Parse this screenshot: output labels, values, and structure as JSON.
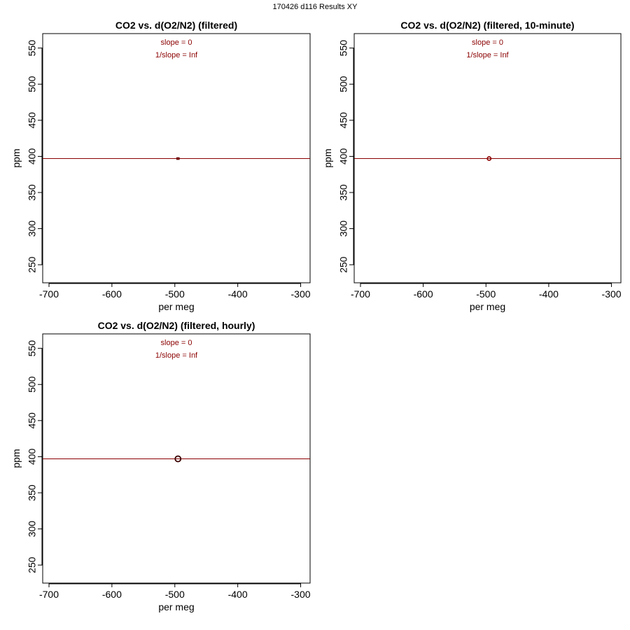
{
  "page": {
    "title": "170426   d116   Results XY"
  },
  "colors": {
    "fit_line": "#8b0000",
    "annotation": "#8b0000",
    "points": "#8b0000",
    "axis": "#000000"
  },
  "chart_data": [
    {
      "type": "scatter",
      "title": "CO2 vs. d(O2/N2) (filtered)",
      "xlabel": "per meg",
      "ylabel": "ppm",
      "xlim": [
        -710,
        -285
      ],
      "ylim": [
        225,
        570
      ],
      "xticks": [
        -700,
        -600,
        -500,
        -400,
        -300
      ],
      "yticks": [
        250,
        300,
        350,
        400,
        450,
        500,
        550
      ],
      "annotations": [
        "slope = 0",
        "1/slope = Inf"
      ],
      "fit_line": {
        "slope": 0,
        "intercept": 397
      },
      "marker": "small-square",
      "points": [
        {
          "x": -495,
          "y": 397
        }
      ],
      "grid": false
    },
    {
      "type": "scatter",
      "title": "CO2 vs. d(O2/N2) (filtered, 10-minute)",
      "xlabel": "per meg",
      "ylabel": "ppm",
      "xlim": [
        -710,
        -285
      ],
      "ylim": [
        225,
        570
      ],
      "xticks": [
        -700,
        -600,
        -500,
        -400,
        -300
      ],
      "yticks": [
        250,
        300,
        350,
        400,
        450,
        500,
        550
      ],
      "annotations": [
        "slope = 0",
        "1/slope = Inf"
      ],
      "fit_line": {
        "slope": 0,
        "intercept": 397
      },
      "marker": "open-circle-small",
      "points": [
        {
          "x": -495,
          "y": 397
        }
      ],
      "grid": false
    },
    {
      "type": "scatter",
      "title": "CO2 vs. d(O2/N2) (filtered, hourly)",
      "xlabel": "per meg",
      "ylabel": "ppm",
      "xlim": [
        -710,
        -285
      ],
      "ylim": [
        225,
        570
      ],
      "xticks": [
        -700,
        -600,
        -500,
        -400,
        -300
      ],
      "yticks": [
        250,
        300,
        350,
        400,
        450,
        500,
        550
      ],
      "annotations": [
        "slope = 0",
        "1/slope = Inf"
      ],
      "fit_line": {
        "slope": 0,
        "intercept": 397
      },
      "marker": "open-circle-large",
      "points": [
        {
          "x": -495,
          "y": 397
        }
      ],
      "grid": false
    }
  ]
}
